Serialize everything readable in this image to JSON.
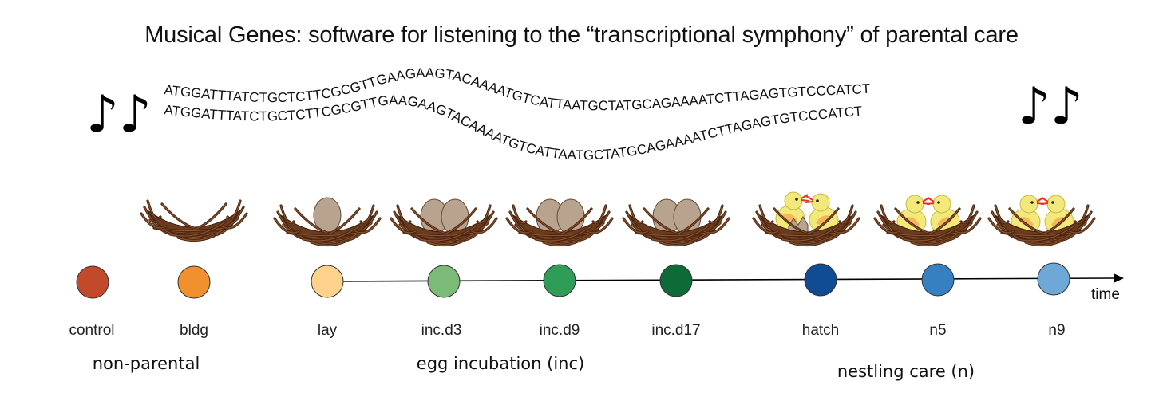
{
  "title": "Musical Genes: software for listening to the “transcriptional symphony” of parental care",
  "dna_sequence": "ATGGATTTATCTGCTCTTCGCGTTGAAGAAGTACAAAATGTCATTAATGCTATGCAGAAAATCTTAGAGTGTCCCATCT",
  "icons": {
    "music_note": "double-eighth-note-icon",
    "nest": "nest-icon",
    "egg": "egg-icon",
    "chick": "chick-icon"
  },
  "axis": {
    "label": "time"
  },
  "stages": [
    {
      "id": "control",
      "label": "control",
      "color": "#c24a2a",
      "nest": "none"
    },
    {
      "id": "bldg",
      "label": "bldg",
      "color": "#f0912e",
      "nest": "empty"
    },
    {
      "id": "lay",
      "label": "lay",
      "color": "#fdd28b",
      "nest": "one-egg"
    },
    {
      "id": "inc_d3",
      "label": "inc.d3",
      "color": "#7cbb77",
      "nest": "two-eggs"
    },
    {
      "id": "inc_d9",
      "label": "inc.d9",
      "color": "#2f9c57",
      "nest": "two-eggs"
    },
    {
      "id": "inc_d17",
      "label": "inc.d17",
      "color": "#0d6b37",
      "nest": "two-eggs"
    },
    {
      "id": "hatch",
      "label": "hatch",
      "color": "#0f4c93",
      "nest": "hatching"
    },
    {
      "id": "n5",
      "label": "n5",
      "color": "#3580c1",
      "nest": "two-chicks"
    },
    {
      "id": "n9",
      "label": "n9",
      "color": "#6ea8d6",
      "nest": "two-chicks"
    }
  ],
  "groups": [
    {
      "label": "non-parental"
    },
    {
      "label": "egg incubation (inc)"
    },
    {
      "label": "nestling care (n)"
    }
  ],
  "colors": {
    "egg": "#b8a48e",
    "chick": "#f2e97a",
    "chick_wing": "#f5b65a",
    "nest": "#6b3b1e",
    "beak": "#e8331e"
  }
}
